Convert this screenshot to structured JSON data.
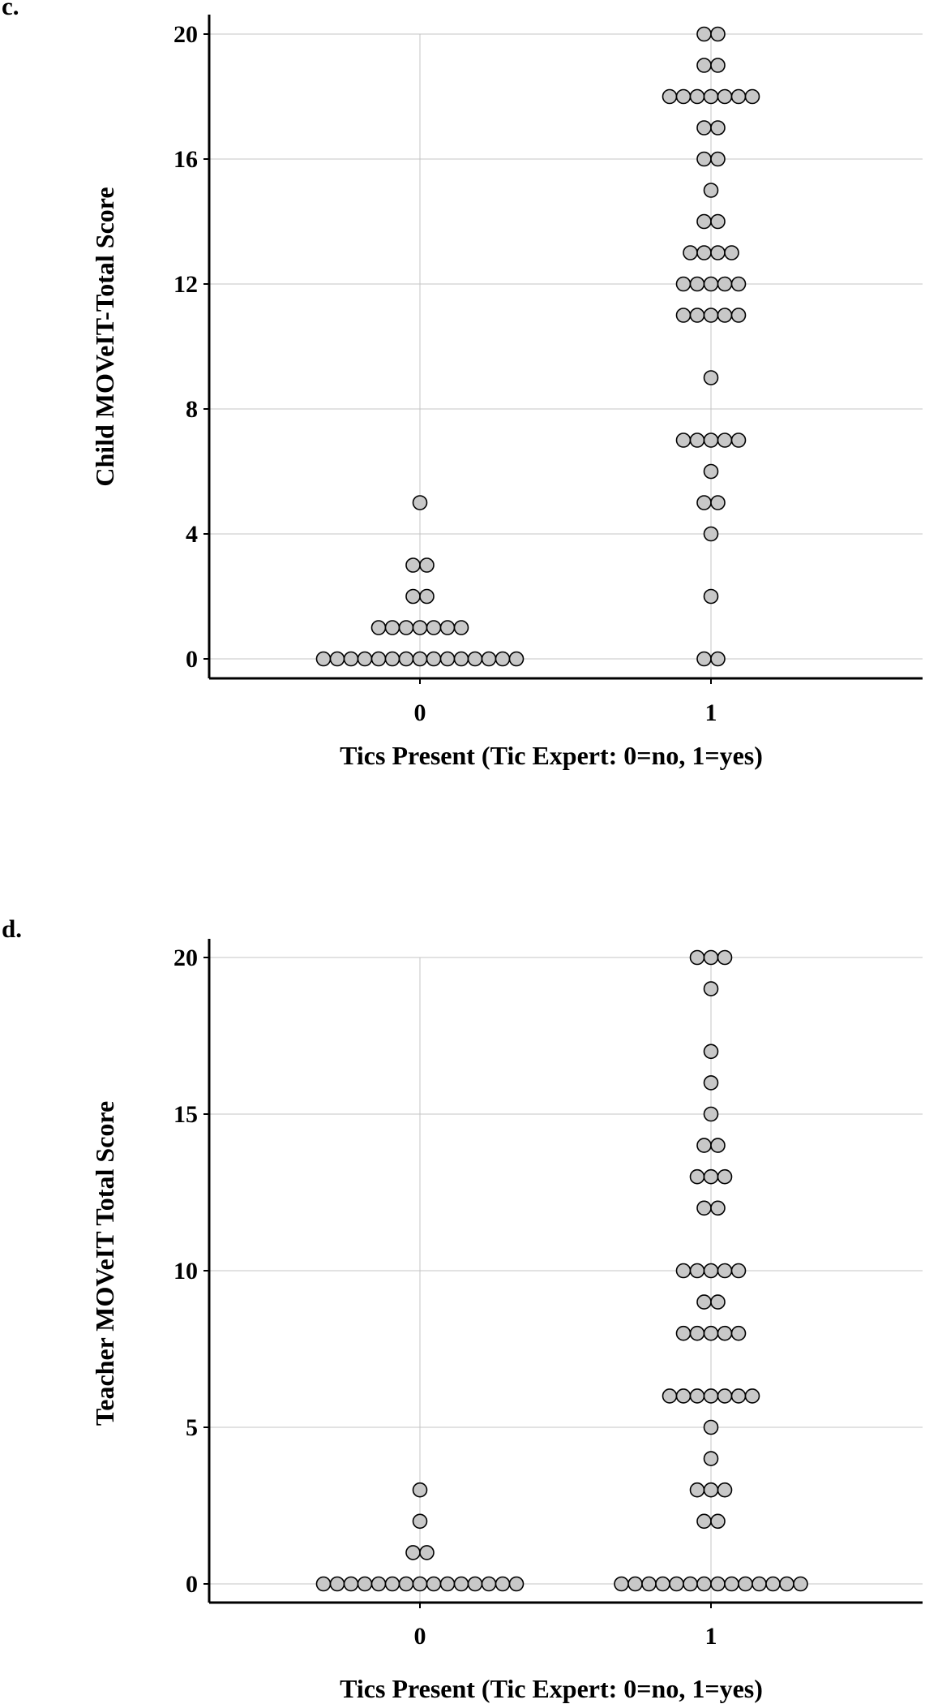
{
  "chart_data": [
    {
      "type": "scatter",
      "subtype": "dot-plot",
      "panel_label": "c.",
      "title": "",
      "xlabel": "Tics Present (Tic Expert: 0=no, 1=yes)",
      "ylabel": "Child MOVeIT-Total Score",
      "categories": [
        "0",
        "1"
      ],
      "ylim": [
        0,
        20
      ],
      "yticks": [
        0,
        4,
        8,
        12,
        16,
        20
      ],
      "ytick_labels": [
        "0",
        "4",
        "8",
        "12",
        "16",
        "20"
      ],
      "grid": true,
      "marker_color": "#c8c8c8",
      "groups": [
        {
          "x": "0",
          "counts": [
            {
              "y": 5,
              "n": 1
            },
            {
              "y": 3,
              "n": 2
            },
            {
              "y": 2,
              "n": 2
            },
            {
              "y": 1,
              "n": 7
            },
            {
              "y": 0,
              "n": 15
            }
          ]
        },
        {
          "x": "1",
          "counts": [
            {
              "y": 20,
              "n": 2
            },
            {
              "y": 19,
              "n": 2
            },
            {
              "y": 18,
              "n": 7
            },
            {
              "y": 17,
              "n": 2
            },
            {
              "y": 16,
              "n": 2
            },
            {
              "y": 15,
              "n": 1
            },
            {
              "y": 14,
              "n": 2
            },
            {
              "y": 13,
              "n": 4
            },
            {
              "y": 12,
              "n": 5
            },
            {
              "y": 11,
              "n": 5
            },
            {
              "y": 9,
              "n": 1
            },
            {
              "y": 7,
              "n": 5
            },
            {
              "y": 6,
              "n": 1
            },
            {
              "y": 5,
              "n": 2
            },
            {
              "y": 4,
              "n": 1
            },
            {
              "y": 2,
              "n": 1
            },
            {
              "y": 0,
              "n": 2
            }
          ]
        }
      ]
    },
    {
      "type": "scatter",
      "subtype": "dot-plot",
      "panel_label": "d.",
      "title": "",
      "xlabel": "Tics Present (Tic Expert: 0=no, 1=yes)",
      "ylabel": "Teacher MOVeIT Total Score",
      "categories": [
        "0",
        "1"
      ],
      "ylim": [
        0,
        20
      ],
      "yticks": [
        0,
        5,
        10,
        15,
        20
      ],
      "ytick_labels": [
        "0",
        "5",
        "10",
        "15",
        "20"
      ],
      "grid": true,
      "marker_color": "#c8c8c8",
      "groups": [
        {
          "x": "0",
          "counts": [
            {
              "y": 3,
              "n": 1
            },
            {
              "y": 2,
              "n": 1
            },
            {
              "y": 1,
              "n": 2
            },
            {
              "y": 0,
              "n": 15
            }
          ]
        },
        {
          "x": "1",
          "counts": [
            {
              "y": 20,
              "n": 3
            },
            {
              "y": 19,
              "n": 1
            },
            {
              "y": 17,
              "n": 1
            },
            {
              "y": 16,
              "n": 1
            },
            {
              "y": 15,
              "n": 1
            },
            {
              "y": 14,
              "n": 2
            },
            {
              "y": 13,
              "n": 3
            },
            {
              "y": 12,
              "n": 2
            },
            {
              "y": 10,
              "n": 5
            },
            {
              "y": 9,
              "n": 2
            },
            {
              "y": 8,
              "n": 5
            },
            {
              "y": 6,
              "n": 7
            },
            {
              "y": 5,
              "n": 1
            },
            {
              "y": 4,
              "n": 1
            },
            {
              "y": 3,
              "n": 3
            },
            {
              "y": 2,
              "n": 2
            },
            {
              "y": 0,
              "n": 14
            }
          ]
        }
      ]
    }
  ]
}
